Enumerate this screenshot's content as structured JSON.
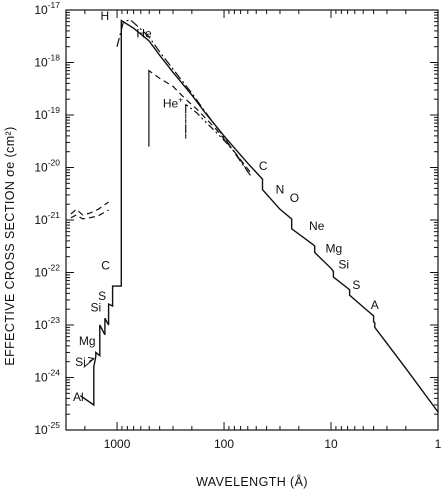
{
  "chart_data": {
    "type": "line",
    "title": "",
    "xlabel": "WAVELENGTH (Å)",
    "ylabel": "EFFECTIVE CROSS SECTION σe (cm²)",
    "x_scale": "log",
    "x_reversed": true,
    "y_scale": "log",
    "xlim": [
      3000,
      1
    ],
    "ylim": [
      1e-25,
      1e-17
    ],
    "grid": false,
    "x_ticks": [
      {
        "value": 1000,
        "label": "1000"
      },
      {
        "value": 100,
        "label": "100"
      },
      {
        "value": 10,
        "label": "10"
      },
      {
        "value": 1,
        "label": "1"
      }
    ],
    "y_ticks": [
      {
        "value": 1e-25,
        "mantissa": "10",
        "exp": "-25"
      },
      {
        "value": 1e-24,
        "mantissa": "10",
        "exp": "-24"
      },
      {
        "value": 1e-23,
        "mantissa": "10",
        "exp": "-23"
      },
      {
        "value": 1e-22,
        "mantissa": "10",
        "exp": "-22"
      },
      {
        "value": 1e-21,
        "mantissa": "10",
        "exp": "-21"
      },
      {
        "value": 1e-20,
        "mantissa": "10",
        "exp": "-20"
      },
      {
        "value": 1e-19,
        "mantissa": "10",
        "exp": "-19"
      },
      {
        "value": 1e-18,
        "mantissa": "10",
        "exp": "-18"
      },
      {
        "value": 1e-17,
        "mantissa": "10",
        "exp": "-17"
      }
    ],
    "series": [
      {
        "style": "solid",
        "points": [
          [
            2200,
            4.5e-25
          ],
          [
            1650,
            3e-25
          ],
          [
            1650,
            1.6e-24
          ],
          [
            1580,
            2.5e-24
          ],
          [
            1580,
            3e-24
          ],
          [
            1450,
            2.6e-24
          ],
          [
            1450,
            1e-23
          ],
          [
            1300,
            6.5e-24
          ],
          [
            1300,
            1.35e-23
          ],
          [
            1200,
            1e-23
          ],
          [
            1200,
            2.5e-23
          ],
          [
            1101,
            2.3e-23
          ],
          [
            1101,
            5.5e-23
          ],
          [
            912,
            5.5e-23
          ],
          [
            912,
            6.3e-18
          ],
          [
            700,
            4.5e-18
          ],
          [
            504,
            2.6e-18
          ],
          [
            400,
            1.38e-18
          ],
          [
            300,
            6.5e-19
          ],
          [
            200,
            2.4e-19
          ],
          [
            150,
            1.1e-19
          ],
          [
            100,
            4e-20
          ],
          [
            60,
            1.2e-20
          ],
          [
            43.7,
            6e-21
          ],
          [
            43.7,
            3.8e-21
          ],
          [
            30,
            1.6e-21
          ],
          [
            23.3,
            1.05e-21
          ],
          [
            23.3,
            6.8e-22
          ],
          [
            15,
            3.5e-22
          ],
          [
            14.2,
            3.2e-22
          ],
          [
            14.2,
            2.4e-22
          ],
          [
            10,
            1.2e-22
          ],
          [
            9.5,
            1.05e-22
          ],
          [
            9.5,
            8.2e-23
          ],
          [
            6.7,
            4.7e-23
          ],
          [
            6.7,
            3.7e-23
          ],
          [
            5,
            2.2e-23
          ],
          [
            4.0,
            1.5e-23
          ],
          [
            4.0,
            1.15e-23
          ],
          [
            3.9,
            1.1e-23
          ],
          [
            3.9,
            9e-24
          ],
          [
            2,
            1.5e-24
          ],
          [
            1,
            2.2e-25
          ]
        ]
      },
      {
        "style": "dash-dot",
        "points": [
          [
            1000,
            2e-18
          ],
          [
            870,
            6e-18
          ],
          [
            750,
            6.5e-18
          ],
          [
            650,
            5e-18
          ],
          [
            504,
            3.1e-18
          ],
          [
            400,
            1.6e-18
          ],
          [
            300,
            7.5e-19
          ],
          [
            200,
            2.6e-19
          ],
          [
            150,
            1.15e-19
          ],
          [
            100,
            3.8e-20
          ],
          [
            70,
            1.3e-20
          ],
          [
            55,
            6.5e-21
          ]
        ]
      },
      {
        "style": "dashed",
        "points": [
          [
            504,
            7e-19
          ],
          [
            504,
            2.5e-20
          ],
          [
            504,
            7e-19
          ],
          [
            400,
            5e-19
          ],
          [
            300,
            3.5e-19
          ],
          [
            228,
            2e-19
          ],
          [
            180,
            1.3e-19
          ],
          [
            120,
            5.5e-20
          ],
          [
            80,
            2e-20
          ],
          [
            55,
            7.5e-21
          ]
        ]
      },
      {
        "style": "dash-dot-dot",
        "points": [
          [
            228,
            1.6e-19
          ],
          [
            228,
            3.5e-20
          ],
          [
            228,
            1.6e-19
          ],
          [
            180,
            1.1e-19
          ],
          [
            150,
            7.5e-20
          ],
          [
            120,
            4.8e-20
          ],
          [
            100,
            3.3e-20
          ],
          [
            80,
            2e-20
          ],
          [
            60,
            8.5e-21
          ]
        ]
      },
      {
        "style": "dashed",
        "points": [
          [
            2700,
            1.3e-21
          ],
          [
            2400,
            1.6e-21
          ],
          [
            2100,
            1.25e-21
          ],
          [
            1800,
            1.35e-21
          ],
          [
            1500,
            1.6e-21
          ],
          [
            1200,
            2.2e-21
          ]
        ]
      },
      {
        "style": "dashed",
        "points": [
          [
            2700,
            1.1e-21
          ],
          [
            2400,
            1.25e-21
          ],
          [
            2100,
            1.05e-21
          ],
          [
            1800,
            1.1e-21
          ],
          [
            1500,
            1.2e-21
          ],
          [
            1200,
            1.55e-21
          ]
        ]
      }
    ],
    "annotations": [
      {
        "text": "H",
        "x": 1300,
        "y": 6.5e-18
      },
      {
        "text": "He",
        "x": 560,
        "y": 3e-18
      },
      {
        "text": "He",
        "sup": "+",
        "x": 300,
        "y": 1.4e-19
      },
      {
        "text": "C",
        "x": 43,
        "y": 9e-21
      },
      {
        "text": "N",
        "x": 30,
        "y": 3.2e-21
      },
      {
        "text": "O",
        "x": 22,
        "y": 2.2e-21
      },
      {
        "text": "Ne",
        "x": 13.6,
        "y": 6.5e-22
      },
      {
        "text": "Mg",
        "x": 9.4,
        "y": 2.4e-22
      },
      {
        "text": "Si",
        "x": 7.6,
        "y": 1.2e-22
      },
      {
        "text": "S",
        "x": 5.8,
        "y": 4.8e-23
      },
      {
        "text": "A",
        "x": 3.9,
        "y": 2e-23
      },
      {
        "text": "C",
        "x": 1280,
        "y": 1.15e-22
      },
      {
        "text": "S",
        "x": 1380,
        "y": 3e-23
      },
      {
        "text": "Si",
        "x": 1580,
        "y": 1.8e-23
      },
      {
        "text": "Mg",
        "x": 1900,
        "y": 4.2e-24
      },
      {
        "text": "Si",
        "x": 2200,
        "y": 1.65e-24
      },
      {
        "text": "Al",
        "x": 2300,
        "y": 3.6e-25
      }
    ]
  }
}
